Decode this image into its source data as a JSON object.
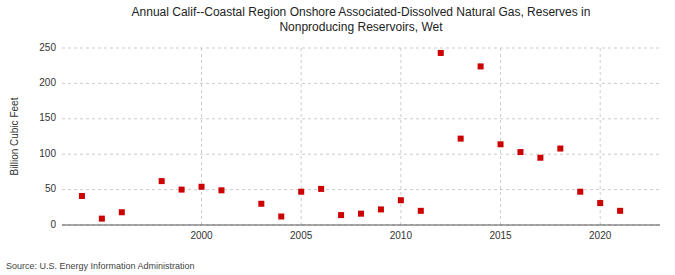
{
  "chart_data": {
    "type": "scatter",
    "title": "Annual Calif--Coastal Region Onshore Associated-Dissolved Natural Gas, Reserves in\nNonproducing Reservoirs, Wet",
    "ylabel": "Billion Cubic Feet",
    "annotations": [
      "Source: U.S. Energy Information Administration"
    ],
    "color": "#cc0000",
    "marker": "square",
    "grid": true,
    "xlim": [
      1993,
      2023
    ],
    "ylim": [
      0,
      250
    ],
    "xticks": [
      2000,
      2005,
      2010,
      2015,
      2020
    ],
    "yticks": [
      0,
      50,
      100,
      150,
      200,
      250
    ],
    "x": [
      1994,
      1995,
      1996,
      1998,
      1999,
      2000,
      2001,
      2003,
      2004,
      2005,
      2006,
      2007,
      2008,
      2009,
      2010,
      2011,
      2012,
      2013,
      2014,
      2015,
      2016,
      2017,
      2018,
      2019,
      2020,
      2021
    ],
    "values": [
      41,
      9,
      18,
      62,
      50,
      54,
      49,
      30,
      12,
      47,
      51,
      14,
      16,
      22,
      35,
      20,
      243,
      122,
      224,
      114,
      103,
      95,
      108,
      47,
      31,
      20
    ]
  }
}
